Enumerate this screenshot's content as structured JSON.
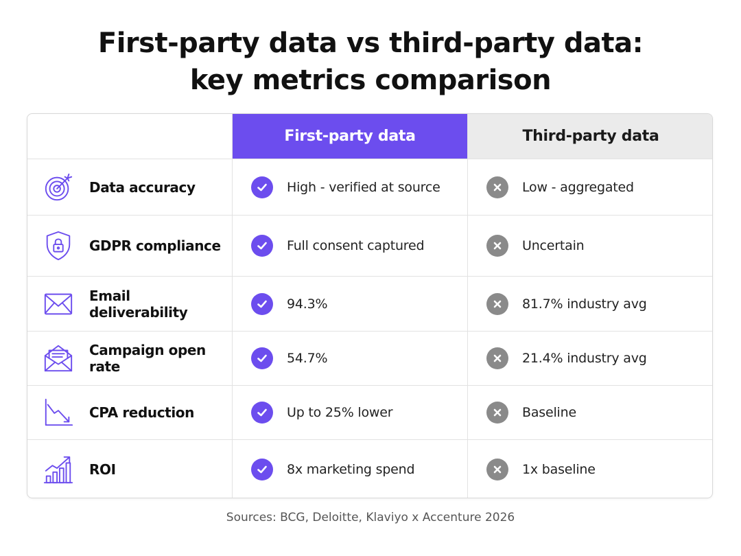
{
  "title": {
    "line1": "First-party data vs third-party data:",
    "line2": "key metrics comparison"
  },
  "columns": {
    "first_party": "First-party data",
    "third_party": "Third-party data"
  },
  "colors": {
    "accent": "#6c4dee",
    "header_secondary_bg": "#ebebeb",
    "cross": "#8a8a8a"
  },
  "rows": [
    {
      "icon": "target-icon",
      "metric": "Data accuracy",
      "first": "High - verified at source",
      "third": "Low - aggregated"
    },
    {
      "icon": "shield-lock-icon",
      "metric": "GDPR compliance",
      "first": "Full consent captured",
      "third": "Uncertain"
    },
    {
      "icon": "envelope-icon",
      "metric": "Email deliverability",
      "first": "94.3%",
      "third": "81.7% industry avg"
    },
    {
      "icon": "open-envelope-icon",
      "metric": "Campaign open rate",
      "first": "54.7%",
      "third": "21.4% industry avg"
    },
    {
      "icon": "trend-down-icon",
      "metric": "CPA reduction",
      "first": "Up to 25% lower",
      "third": "Baseline"
    },
    {
      "icon": "growth-chart-icon",
      "metric": "ROI",
      "first": "8x marketing spend",
      "third": "1x baseline"
    }
  ],
  "sources": "Sources: BCG, Deloitte, Klaviyo x Accenture 2026"
}
